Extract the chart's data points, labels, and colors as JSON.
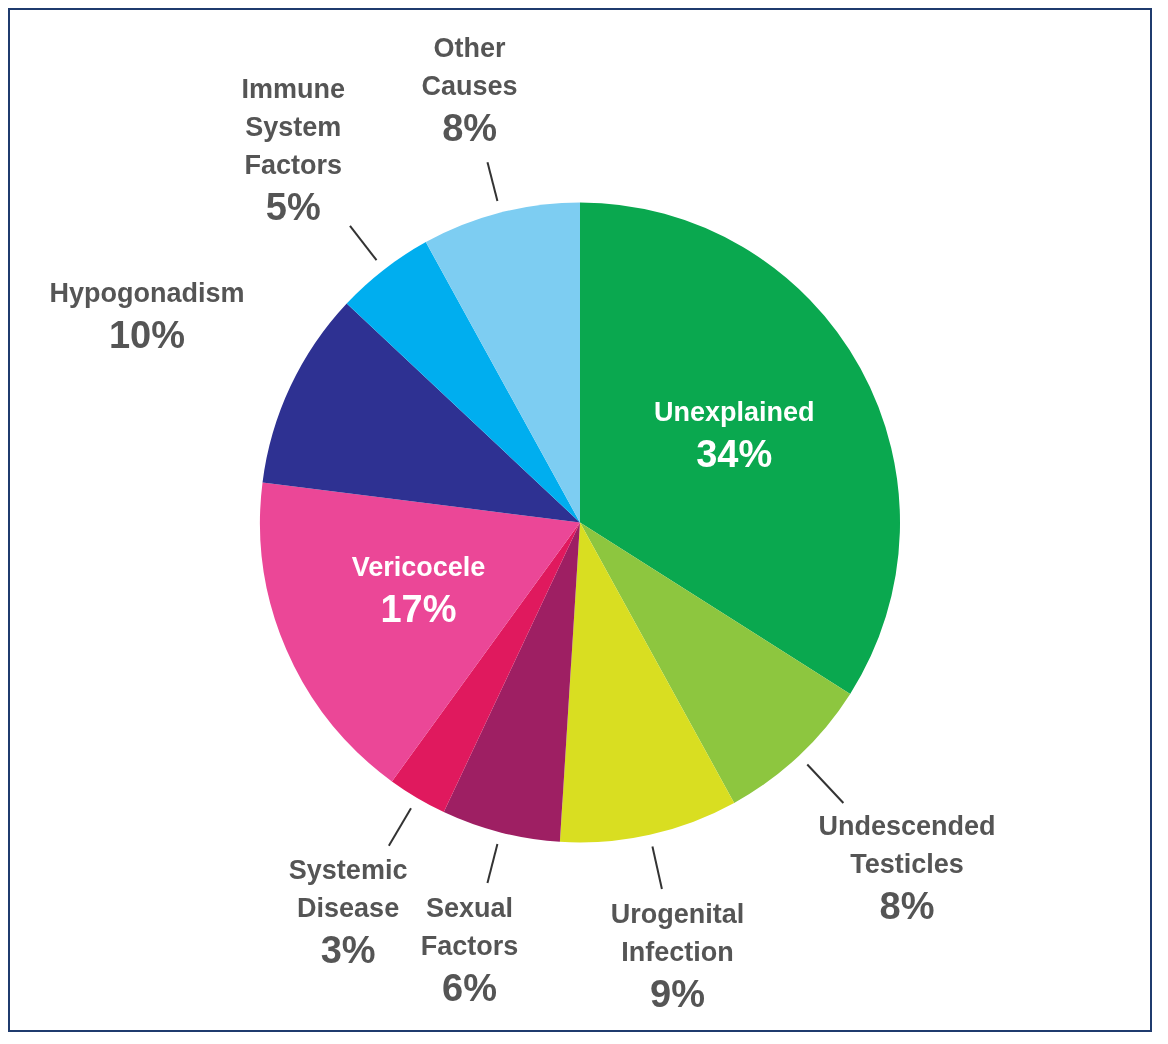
{
  "chart_data": {
    "type": "pie",
    "categories": [
      "Unexplained",
      "Undescended Testicles",
      "Urogenital Infection",
      "Sexual Factors",
      "Systemic Disease",
      "Vericocele",
      "Hypogonadism",
      "Immune System Factors",
      "Other Causes"
    ],
    "values": [
      34,
      8,
      9,
      6,
      3,
      17,
      10,
      5,
      8
    ],
    "value_labels": [
      "34%",
      "8%",
      "9%",
      "6%",
      "3%",
      "17%",
      "10%",
      "5%",
      "8%"
    ],
    "colors": [
      "#0aa84f",
      "#8dc63f",
      "#d9de21",
      "#9e1f63",
      "#e0195e",
      "#eb4797",
      "#2e3192",
      "#00aeef",
      "#7dcdf2"
    ],
    "legend": false
  }
}
